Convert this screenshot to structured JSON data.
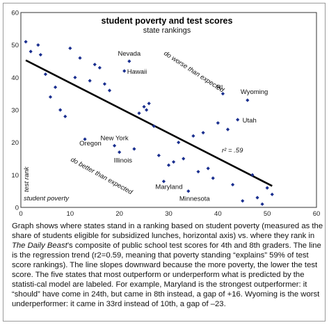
{
  "chart_data": {
    "type": "scatter",
    "title": "student poverty and test scores",
    "subtitle": "state rankings",
    "xlabel": "student poverty",
    "ylabel": "test rank",
    "xlim": [
      0,
      60
    ],
    "ylim": [
      0,
      60
    ],
    "x_ticks": [
      0,
      10,
      20,
      30,
      40,
      50,
      60
    ],
    "y_ticks": [
      0,
      10,
      20,
      30,
      40,
      50,
      60
    ],
    "points": [
      [
        1,
        51
      ],
      [
        2,
        48
      ],
      [
        3.5,
        50
      ],
      [
        4,
        47
      ],
      [
        5,
        41
      ],
      [
        6,
        34
      ],
      [
        7,
        37
      ],
      [
        8,
        30
      ],
      [
        9,
        28
      ],
      [
        10,
        49
      ],
      [
        11,
        40
      ],
      [
        12,
        46
      ],
      [
        13,
        21
      ],
      [
        14,
        39
      ],
      [
        15,
        44
      ],
      [
        16,
        43
      ],
      [
        17,
        38
      ],
      [
        18,
        36
      ],
      [
        19,
        19
      ],
      [
        20,
        17
      ],
      [
        21,
        42
      ],
      [
        22,
        45
      ],
      [
        23,
        18
      ],
      [
        24,
        29
      ],
      [
        25,
        31
      ],
      [
        25.5,
        30
      ],
      [
        26,
        32
      ],
      [
        27,
        25
      ],
      [
        28,
        16
      ],
      [
        29,
        8
      ],
      [
        30,
        13
      ],
      [
        31,
        14
      ],
      [
        32,
        20
      ],
      [
        33,
        15
      ],
      [
        34,
        5
      ],
      [
        35,
        22
      ],
      [
        36,
        11
      ],
      [
        37,
        23
      ],
      [
        38,
        12
      ],
      [
        39,
        9
      ],
      [
        40,
        26
      ],
      [
        41,
        35
      ],
      [
        42,
        24
      ],
      [
        43,
        7
      ],
      [
        44,
        27
      ],
      [
        45,
        2
      ],
      [
        46,
        33
      ],
      [
        47,
        10
      ],
      [
        48,
        3
      ],
      [
        49,
        1
      ],
      [
        50,
        6
      ],
      [
        51,
        4
      ]
    ],
    "trend_line": {
      "x": [
        1,
        51
      ],
      "y": [
        45.3,
        6.6
      ]
    },
    "r_squared_label": "r² = .59",
    "point_labels": [
      {
        "text": "Nevada",
        "x": 22,
        "y": 45
      },
      {
        "text": "Hawaii",
        "x": 21,
        "y": 42
      },
      {
        "text": "RI",
        "x": 41,
        "y": 35
      },
      {
        "text": "Wyoming",
        "x": 46,
        "y": 33
      },
      {
        "text": "Utah",
        "x": 44,
        "y": 27
      },
      {
        "text": "New York",
        "x": 19,
        "y": 19
      },
      {
        "text": "Oregon",
        "x": 13,
        "y": 21
      },
      {
        "text": "Illinois",
        "x": 20,
        "y": 17
      },
      {
        "text": "Maryland",
        "x": 29,
        "y": 8
      },
      {
        "text": "Minnesota",
        "x": 34,
        "y": 5
      }
    ],
    "annotations": [
      "do worse than expected",
      "do better than expected"
    ],
    "colors": {
      "points": "#1a2f8f",
      "trend": "#000000"
    },
    "grid": false
  },
  "caption": {
    "part1": "Graph shows where states stand in a ranking based on student poverty (measured as the share of students eligible for subsidized lunches, horizontal axis) vs. where they rank in ",
    "publication": "The Daily Beast",
    "part2": "’s composite of public school test scores for 4th and 8th graders. The line is the regression trend (r2=0.59, meaning that poverty standing “explains” 59% of test score rankings). The line slopes downward because the more poverty, the lower the test score. The five states that most outperform or underperform what is predicted by the statisti-cal model are labeled. For example, Maryland is the strongest outperformer: it “should” have come in 24th, but came in 8th instead, a gap of +16. Wyoming is the worst underperformer: it came in 33rd instead of 10th, a gap of –23."
  }
}
